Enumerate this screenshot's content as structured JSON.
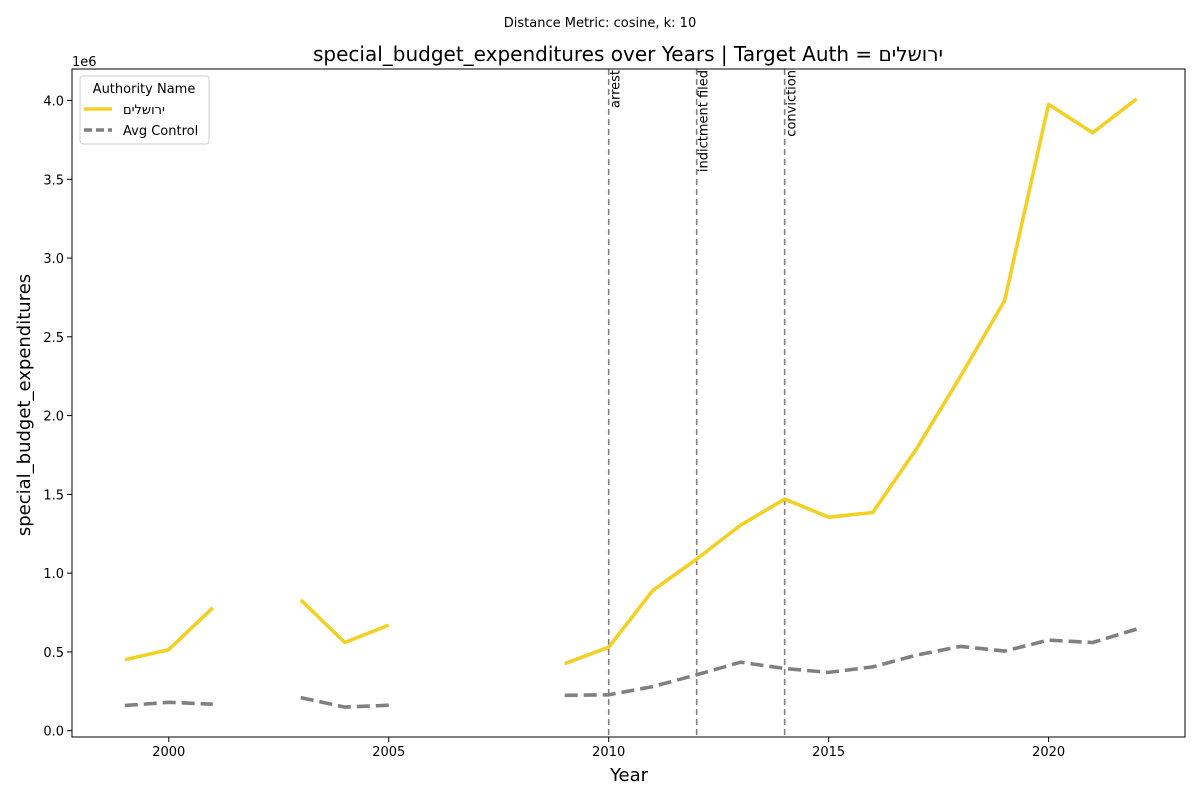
{
  "chart_data": {
    "type": "line",
    "suptitle": "Distance Metric: cosine, k: 10",
    "title": "special_budget_expenditures over Years | Target Auth = ירושלים",
    "xlabel": "Year",
    "ylabel": "special_budget_expenditures",
    "y_multiplier_label": "1e6",
    "xlim": [
      1997.8,
      2023.1
    ],
    "ylim": [
      -40000,
      4200000
    ],
    "x_ticks": [
      2000,
      2005,
      2010,
      2015,
      2020
    ],
    "y_ticks": [
      0,
      500000,
      1000000,
      1500000,
      2000000,
      2500000,
      3000000,
      3500000,
      4000000
    ],
    "y_tick_labels": [
      "0.0",
      "0.5",
      "1.0",
      "1.5",
      "2.0",
      "2.5",
      "3.0",
      "3.5",
      "4.0"
    ],
    "x": [
      1999,
      2000,
      2001,
      2002,
      2003,
      2004,
      2005,
      2006,
      2007,
      2008,
      2009,
      2010,
      2011,
      2012,
      2013,
      2014,
      2015,
      2016,
      2017,
      2018,
      2019,
      2020,
      2021,
      2022
    ],
    "series": [
      {
        "name": "ירושלים",
        "color": "#f2d024",
        "style": "solid",
        "values": [
          450000,
          515000,
          780000,
          null,
          830000,
          560000,
          670000,
          null,
          null,
          null,
          425000,
          530000,
          890000,
          1090000,
          1305000,
          1470000,
          1355000,
          1385000,
          1790000,
          2250000,
          2730000,
          3975000,
          3795000,
          4010000
        ]
      },
      {
        "name": "Avg Control",
        "color": "#808080",
        "style": "dashed",
        "values": [
          160000,
          180000,
          168000,
          null,
          210000,
          150000,
          162000,
          null,
          null,
          null,
          225000,
          228000,
          280000,
          355000,
          435000,
          395000,
          370000,
          405000,
          480000,
          535000,
          505000,
          575000,
          560000,
          645000
        ]
      }
    ],
    "events": [
      {
        "x": 2010,
        "label": "arrest"
      },
      {
        "x": 2012,
        "label": "indictment filed"
      },
      {
        "x": 2014,
        "label": "conviction"
      }
    ],
    "legend": {
      "title": "Authority Name",
      "position": "top-left"
    },
    "event_line_color": "#808080",
    "grid": false
  }
}
